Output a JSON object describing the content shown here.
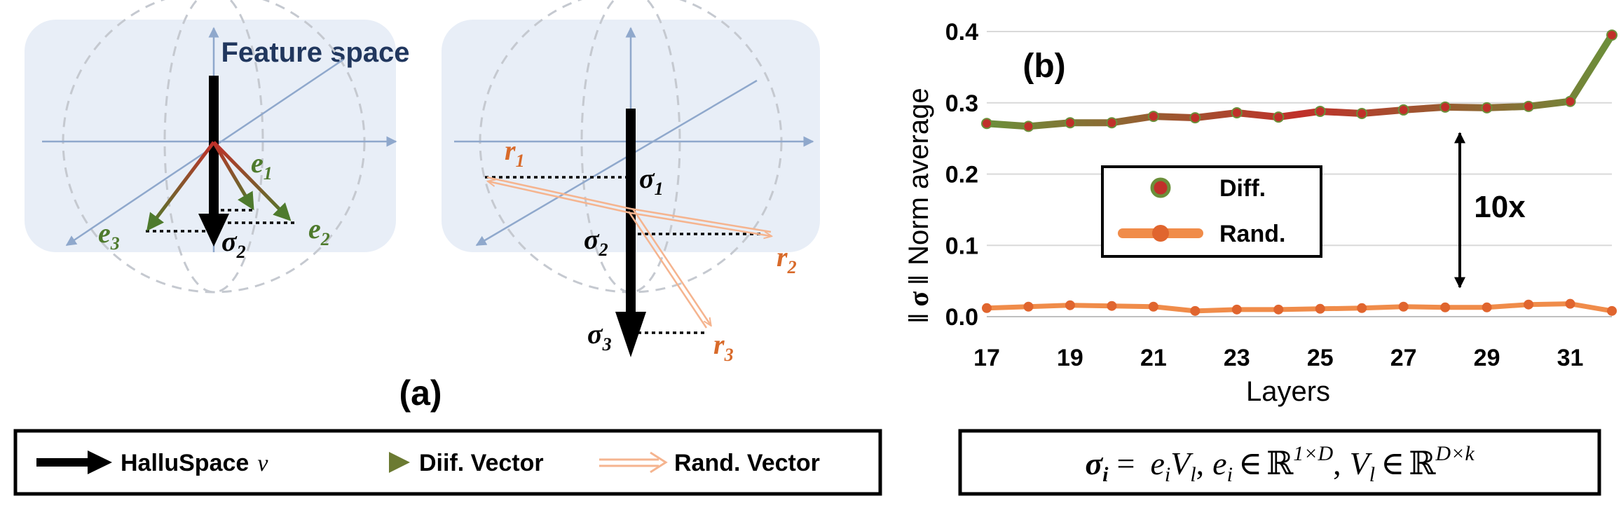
{
  "panel_a": {
    "caption": "(a)",
    "title": "Feature space",
    "left_sphere": {
      "e1": {
        "sym": "e",
        "sub": "1"
      },
      "e2": {
        "sym": "e",
        "sub": "2"
      },
      "e3": {
        "sym": "e",
        "sub": "3"
      },
      "sigma": {
        "sym": "σ",
        "sub": "2"
      }
    },
    "right_sphere": {
      "r1": {
        "sym": "r",
        "sub": "1"
      },
      "r2": {
        "sym": "r",
        "sub": "2"
      },
      "r3": {
        "sym": "r",
        "sub": "3"
      },
      "s1": {
        "sym": "σ",
        "sub": "1"
      },
      "s2": {
        "sym": "σ",
        "sub": "2"
      },
      "s3": {
        "sym": "σ",
        "sub": "3"
      }
    }
  },
  "legend_a": {
    "hallu": "HalluSpace",
    "hallu_var": "v",
    "diff": "Diif. Vector",
    "rand": "Rand. Vector"
  },
  "colors": {
    "axis": "#8fa8cc",
    "sphere_bg": "#e8eef7",
    "title": "#21375e",
    "green": "#4e7a2d",
    "red": "#c0302a",
    "orange": "#d86a2a",
    "rand_line": "#f5b48f",
    "diff_green": "#6b8f3a",
    "rand_series": "#f08c4a"
  },
  "chart_data": {
    "type": "line",
    "panel_label": "(b)",
    "title": "",
    "xlabel": "Layers",
    "ylabel_symbol": "‖ σ ‖",
    "ylabel_text": "Norm average",
    "x": [
      17,
      18,
      19,
      20,
      21,
      22,
      23,
      24,
      25,
      26,
      27,
      28,
      29,
      30,
      31,
      32
    ],
    "xticks": [
      17,
      19,
      21,
      23,
      25,
      27,
      29,
      31
    ],
    "yticks": [
      0.0,
      0.1,
      0.2,
      0.3,
      0.4
    ],
    "ytick_labels": [
      "0.0",
      "0.1",
      "0.2",
      "0.3",
      "0.4"
    ],
    "xlim": [
      17,
      32
    ],
    "ylim": [
      0.0,
      0.4
    ],
    "grid": true,
    "legend": {
      "position": "center-left",
      "entries": [
        "Diff.",
        "Rand."
      ]
    },
    "annotation": "10x",
    "series": [
      {
        "name": "Diff.",
        "values": [
          0.271,
          0.267,
          0.272,
          0.272,
          0.281,
          0.279,
          0.286,
          0.28,
          0.288,
          0.285,
          0.29,
          0.294,
          0.293,
          0.295,
          0.302,
          0.395
        ]
      },
      {
        "name": "Rand.",
        "values": [
          0.012,
          0.014,
          0.016,
          0.015,
          0.014,
          0.008,
          0.01,
          0.01,
          0.011,
          0.012,
          0.014,
          0.013,
          0.013,
          0.017,
          0.018,
          0.008
        ]
      }
    ]
  },
  "formula": {
    "sigma": "σ",
    "sigma_sub": "i",
    "equals": "=",
    "term1_a": "e",
    "term1_a_sub": "i",
    "term1_b": "V",
    "term1_b_sub": "l",
    "comma": ",",
    "e": "e",
    "e_sub": "i",
    "in": "∈",
    "R": "ℝ",
    "dim1": "1×D",
    "V": "V",
    "V_sub": "l",
    "dim2": "D×k"
  }
}
